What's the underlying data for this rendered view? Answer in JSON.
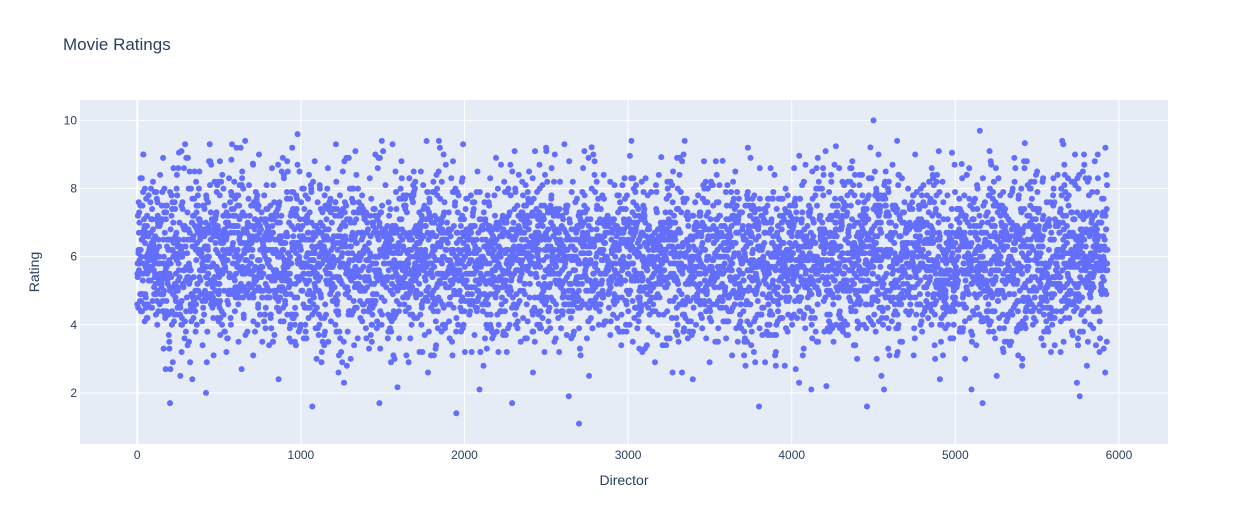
{
  "chart_data": {
    "type": "scatter",
    "title": "Movie Ratings",
    "xlabel": "Director",
    "ylabel": "Rating",
    "xlim": [
      -350,
      6300
    ],
    "ylim": [
      0.5,
      10.6
    ],
    "x_ticks": [
      0,
      1000,
      2000,
      3000,
      4000,
      5000,
      6000
    ],
    "y_ticks": [
      2,
      4,
      6,
      8,
      10
    ],
    "x_tick_labels": [
      "0",
      "1000",
      "2000",
      "3000",
      "4000",
      "5000",
      "6000"
    ],
    "y_tick_labels": [
      "2",
      "4",
      "6",
      "8",
      "10"
    ],
    "grid": true,
    "legend": "none",
    "point_count": 6000,
    "x_range_of_points": [
      0,
      5930
    ],
    "rating_range_of_points": [
      1.1,
      10.0
    ],
    "typical_rating_band": [
      3.0,
      8.5
    ],
    "notable_points": [
      {
        "x": 4500,
        "y": 10.0
      },
      {
        "x": 5150,
        "y": 9.7
      },
      {
        "x": 980,
        "y": 9.6
      },
      {
        "x": 3020,
        "y": 9.4
      },
      {
        "x": 660,
        "y": 9.4
      },
      {
        "x": 1560,
        "y": 9.3
      },
      {
        "x": 5660,
        "y": 9.3
      },
      {
        "x": 2500,
        "y": 9.1
      },
      {
        "x": 270,
        "y": 9.1
      },
      {
        "x": 1070,
        "y": 1.6
      },
      {
        "x": 1950,
        "y": 1.4
      },
      {
        "x": 2700,
        "y": 1.1
      },
      {
        "x": 4460,
        "y": 1.6
      },
      {
        "x": 3800,
        "y": 1.6
      },
      {
        "x": 1480,
        "y": 1.7
      },
      {
        "x": 200,
        "y": 1.7
      },
      {
        "x": 420,
        "y": 2.0
      },
      {
        "x": 5760,
        "y": 1.9
      }
    ]
  },
  "colors": {
    "plot_background": "#e5ecf6",
    "grid": "#ffffff",
    "marker": "#636efa",
    "text": "#2a3f5f"
  }
}
